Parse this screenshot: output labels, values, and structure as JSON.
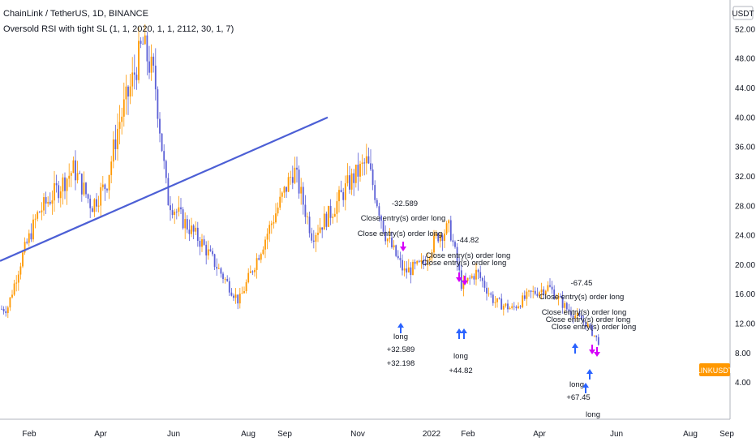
{
  "header": {
    "symbol_line": "ChainLink / TetherUS, 1D, BINANCE",
    "strategy_line": "Oversold RSI with tight SL (1, 1, 2020, 1, 1, 2112, 30, 1, 7)"
  },
  "currency_label": "USDT",
  "last_price_tag": "LINKUSDT",
  "colors": {
    "up_candle": "#ff9800",
    "down_candle": "#5b5fd6",
    "trendline": "#4c5fd5",
    "entry_arrow": "#2962ff",
    "exit_marker": "#d500f9",
    "price_tag": "#ff9800"
  },
  "chart_data": {
    "type": "candlestick",
    "title": "ChainLink / TetherUS, 1D, BINANCE",
    "x": {
      "tick_labels": [
        "Feb",
        "Apr",
        "Jun",
        "Aug",
        "Sep",
        "Nov",
        "2022",
        "Feb",
        "Apr",
        "Jun",
        "Aug",
        "Sep"
      ]
    },
    "y": {
      "range": [
        0,
        56
      ],
      "tick_labels": [
        "4.00",
        "8.00",
        "12.00",
        "16.00",
        "20.00",
        "24.00",
        "28.00",
        "32.00",
        "36.00",
        "40.00",
        "44.00",
        "48.00",
        "52.00"
      ],
      "tick_values": [
        4,
        8,
        12,
        16,
        20,
        24,
        28,
        32,
        36,
        40,
        44,
        48,
        52
      ]
    },
    "grid": false,
    "last_price": 8.0,
    "series": [
      {
        "name": "LINKUSDT",
        "close_path": [
          [
            "Jan 2021",
            14
          ],
          [
            "Jan 2021",
            21
          ],
          [
            "Feb 2021",
            27
          ],
          [
            "Feb 2021",
            30
          ],
          [
            "Mar 2021",
            33
          ],
          [
            "Mar 2021",
            28
          ],
          [
            "Apr 2021",
            31
          ],
          [
            "Apr 2021",
            39
          ],
          [
            "Apr 2021",
            44
          ],
          [
            "May 2021",
            50
          ],
          [
            "May 2021",
            45
          ],
          [
            "May 2021",
            29
          ],
          [
            "Jun 2021",
            26
          ],
          [
            "Jun 2021",
            23
          ],
          [
            "Jul 2021",
            19
          ],
          [
            "Jul 2021",
            15
          ],
          [
            "Aug 2021",
            21
          ],
          [
            "Aug 2021",
            27
          ],
          [
            "Sep 2021",
            33
          ],
          [
            "Sep 2021",
            24
          ],
          [
            "Oct 2021",
            27
          ],
          [
            "Oct 2021",
            31
          ],
          [
            "Nov 2021",
            34
          ],
          [
            "Nov 2021",
            24
          ],
          [
            "Dec 2021",
            19
          ],
          [
            "Dec 2021",
            20
          ],
          [
            "Jan 2022",
            24
          ],
          [
            "Jan 2022",
            25
          ],
          [
            "Jan 2022",
            17
          ],
          [
            "Feb 2022",
            19
          ],
          [
            "Feb 2022",
            15
          ],
          [
            "Mar 2022",
            14
          ],
          [
            "Mar 2022",
            16
          ],
          [
            "Apr 2022",
            17
          ],
          [
            "Apr 2022",
            14
          ],
          [
            "May 2022",
            12
          ],
          [
            "May 2022",
            8
          ]
        ]
      }
    ],
    "trendline": {
      "from": [
        "Jan 2021",
        20.5
      ],
      "to": [
        "Oct 2021",
        40
      ]
    },
    "annotations": {
      "trades": [
        {
          "label": "-32.589",
          "color": "#131722"
        },
        {
          "label": "Close entry(s) order long",
          "color": "#131722"
        },
        {
          "label": "Close entry(s) order long",
          "color": "#131722"
        },
        {
          "label": "-44.82",
          "color": "#131722"
        },
        {
          "label": "Close entry(s) order long",
          "color": "#131722"
        },
        {
          "label": "Close entry(s) order long",
          "color": "#131722"
        },
        {
          "label": "-67.45",
          "color": "#131722"
        },
        {
          "label": "Close entry(s) order long",
          "color": "#131722"
        },
        {
          "label": "Close entry(s) order long",
          "color": "#131722"
        },
        {
          "label": "Close entry(s) order long",
          "color": "#131722"
        },
        {
          "label": "Close entry(s) order long",
          "color": "#131722"
        }
      ],
      "entries": [
        {
          "label": "long",
          "color": "#131722"
        },
        {
          "label": "+32.589",
          "color": "#131722"
        },
        {
          "label": "+32.198",
          "color": "#131722"
        },
        {
          "label": "long",
          "color": "#131722"
        },
        {
          "label": "+44.82",
          "color": "#131722"
        },
        {
          "label": "long",
          "color": "#131722"
        },
        {
          "label": "+67.45",
          "color": "#131722"
        },
        {
          "label": "long",
          "color": "#131722"
        }
      ]
    }
  }
}
